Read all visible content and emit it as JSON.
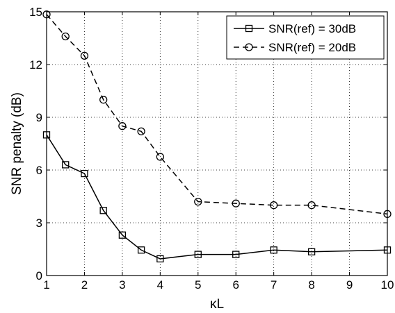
{
  "chart_data": {
    "type": "line",
    "xlabel": "κL",
    "ylabel": "SNR penalty (dB)",
    "xlim": [
      1,
      10
    ],
    "ylim": [
      0,
      15
    ],
    "x_ticks": [
      1,
      2,
      3,
      4,
      5,
      6,
      7,
      8,
      9,
      10
    ],
    "y_ticks": [
      0,
      3,
      6,
      9,
      12,
      15
    ],
    "grid": true,
    "legend_position": "top-right",
    "series": [
      {
        "name": "SNR(ref) = 30dB",
        "marker": "square",
        "line_style": "solid",
        "color": "#000000",
        "x": [
          1,
          1.5,
          2,
          2.5,
          3,
          3.5,
          4,
          5,
          6,
          7,
          8,
          10
        ],
        "y": [
          8.0,
          6.3,
          5.8,
          3.7,
          2.3,
          1.45,
          0.95,
          1.2,
          1.2,
          1.45,
          1.35,
          1.45
        ]
      },
      {
        "name": "SNR(ref) = 20dB",
        "marker": "circle",
        "line_style": "dashed",
        "color": "#000000",
        "x": [
          1,
          1.5,
          2,
          2.5,
          3,
          3.5,
          4,
          5,
          6,
          7,
          8,
          10
        ],
        "y": [
          14.85,
          13.6,
          12.5,
          10.0,
          8.5,
          8.2,
          6.75,
          4.2,
          4.1,
          4.0,
          4.0,
          3.5
        ]
      }
    ]
  }
}
